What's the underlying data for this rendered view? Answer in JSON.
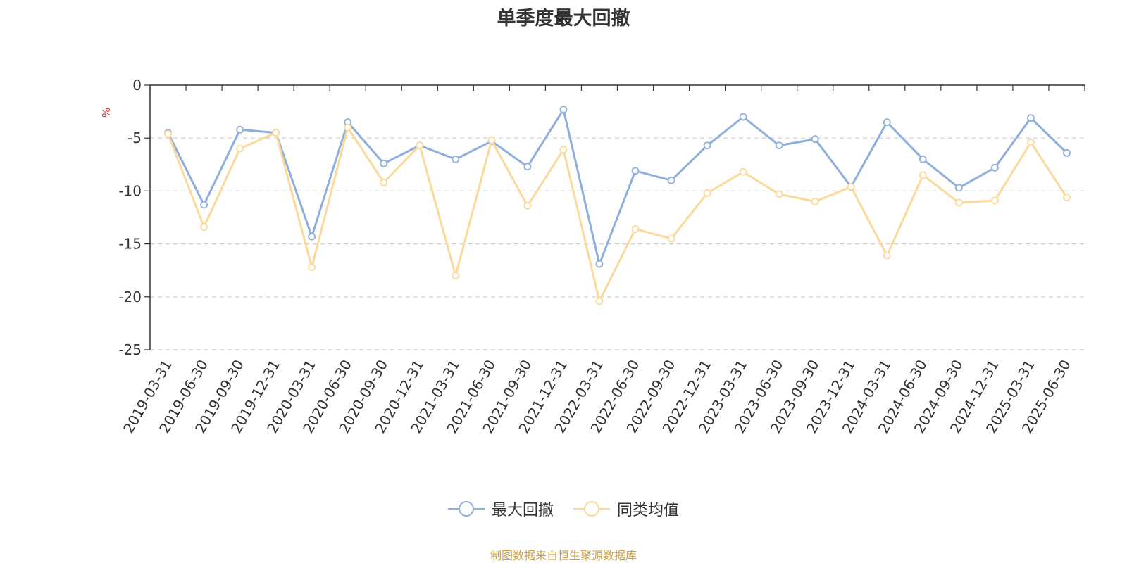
{
  "source_note": "制图数据来自恒生聚源数据库",
  "chart_data": {
    "type": "line",
    "title": "单季度最大回撤",
    "ylabel": "%",
    "ylim": [
      -25,
      0
    ],
    "yticks": [
      0,
      -5,
      -10,
      -15,
      -20,
      -25
    ],
    "grid": true,
    "legend_position": "bottom-center",
    "x": [
      "2019-03-31",
      "2019-06-30",
      "2019-09-30",
      "2019-12-31",
      "2020-03-31",
      "2020-06-30",
      "2020-09-30",
      "2020-12-31",
      "2021-03-31",
      "2021-06-30",
      "2021-09-30",
      "2021-12-31",
      "2022-03-31",
      "2022-06-30",
      "2022-09-30",
      "2022-12-31",
      "2023-03-31",
      "2023-06-30",
      "2023-09-30",
      "2023-12-31",
      "2024-03-31",
      "2024-06-30",
      "2024-09-30",
      "2024-12-31",
      "2025-03-31",
      "2025-06-30"
    ],
    "series": [
      {
        "name": "最大回撤",
        "color": "#8eaedc",
        "values": [
          -4.5,
          -11.3,
          -4.2,
          -4.5,
          -14.3,
          -3.5,
          -7.4,
          -5.7,
          -7.0,
          -5.3,
          -7.7,
          -2.3,
          -16.9,
          -8.1,
          -9.0,
          -5.7,
          -3.0,
          -5.7,
          -5.1,
          -9.6,
          -3.5,
          -7.0,
          -9.7,
          -7.8,
          -3.1,
          -6.4
        ]
      },
      {
        "name": "同类均值",
        "color": "#fbd99a",
        "values": [
          -4.6,
          -13.4,
          -6.0,
          -4.5,
          -17.2,
          -4.0,
          -9.2,
          -5.7,
          -18.0,
          -5.2,
          -11.4,
          -6.1,
          -20.4,
          -13.6,
          -14.5,
          -10.2,
          -8.2,
          -10.3,
          -11.0,
          -9.6,
          -16.1,
          -8.5,
          -11.1,
          -10.9,
          -5.4,
          -10.6
        ]
      }
    ]
  }
}
